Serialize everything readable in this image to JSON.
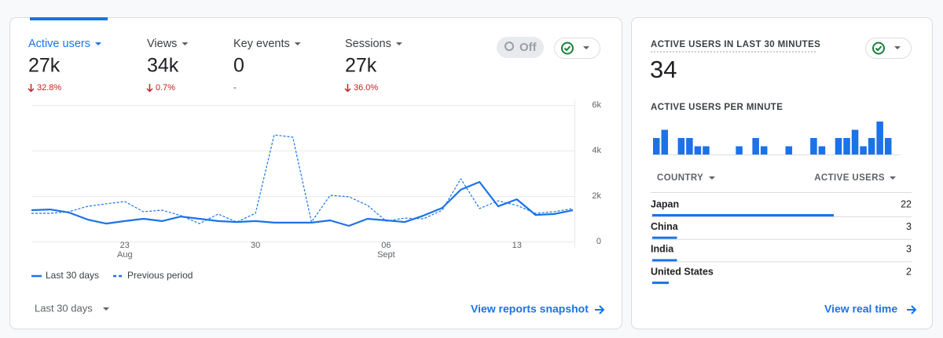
{
  "metrics": [
    {
      "label": "Active users",
      "value": "27k",
      "change": "32.8%"
    },
    {
      "label": "Views",
      "value": "34k",
      "change": "0.7%"
    },
    {
      "label": "Key events",
      "value": "0",
      "change": "-"
    },
    {
      "label": "Sessions",
      "value": "27k",
      "change": "36.0%"
    }
  ],
  "off_badge": "Off",
  "period_selector": "Last 30 days",
  "reports_link": "View reports snapshot",
  "chart_data": [
    {
      "type": "line",
      "categories": [
        null,
        null,
        null,
        null,
        null,
        "23",
        null,
        null,
        null,
        null,
        null,
        null,
        "30",
        null,
        null,
        null,
        null,
        null,
        null,
        "06",
        null,
        null,
        null,
        null,
        null,
        null,
        "13",
        null,
        null,
        null
      ],
      "category_months": [
        null,
        null,
        null,
        null,
        null,
        "Aug",
        null,
        null,
        null,
        null,
        null,
        null,
        null,
        null,
        null,
        null,
        null,
        null,
        null,
        "Sept",
        null,
        null,
        null,
        null,
        null,
        null,
        null,
        null,
        null,
        null
      ],
      "ylim": [
        0,
        6000
      ],
      "yticks": [
        0,
        {
          "value": 2000,
          "label": "2k"
        },
        {
          "value": 4000,
          "label": "4k"
        },
        {
          "value": 6000,
          "label": "6k"
        }
      ],
      "grid": true,
      "legend": "bottom-left",
      "series": [
        {
          "name": "Last 30 days",
          "color": "#1a73e8",
          "dash": false,
          "values": [
            1380,
            1410,
            1280,
            970,
            790,
            900,
            1000,
            900,
            1100,
            1000,
            900,
            860,
            900,
            830,
            830,
            830,
            930,
            690,
            1000,
            930,
            860,
            1140,
            1480,
            2280,
            2620,
            1550,
            1860,
            1170,
            1210,
            1380
          ]
        },
        {
          "name": "Previous period",
          "color": "#1a73e8",
          "dash": true,
          "values": [
            1240,
            1240,
            1310,
            1550,
            1660,
            1760,
            1310,
            1380,
            1140,
            790,
            1210,
            860,
            1240,
            4690,
            4590,
            860,
            2030,
            1970,
            1590,
            900,
            1030,
            1000,
            1380,
            2760,
            1450,
            1790,
            1590,
            1240,
            1310,
            1450
          ]
        }
      ]
    },
    {
      "type": "bar",
      "title": "ACTIVE USERS PER MINUTE",
      "color": "#1a73e8",
      "ylim": [
        0,
        4
      ],
      "values": [
        2,
        3,
        0,
        2,
        2,
        1,
        1,
        0,
        0,
        0,
        1,
        0,
        2,
        1,
        0,
        0,
        1,
        0,
        0,
        2,
        1,
        0,
        2,
        2,
        3,
        1,
        2,
        4,
        2,
        0
      ]
    }
  ],
  "realtime": {
    "title": "ACTIVE USERS IN LAST 30 MINUTES",
    "value": "34",
    "table": {
      "headers": [
        "COUNTRY",
        "ACTIVE USERS"
      ],
      "rows": [
        [
          "Japan",
          22
        ],
        [
          "China",
          3
        ],
        [
          "India",
          3
        ],
        [
          "United States",
          2
        ]
      ]
    },
    "link": "View real time"
  }
}
